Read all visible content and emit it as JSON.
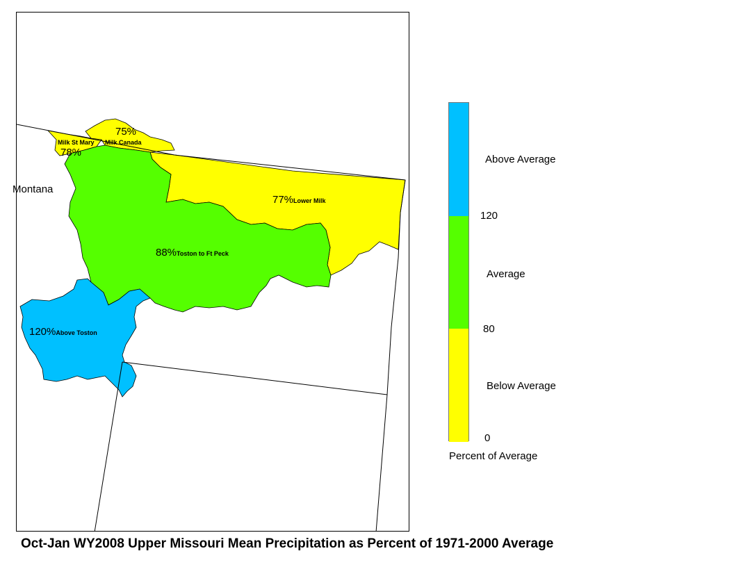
{
  "title": "Oct-Jan WY2008 Upper Missouri Mean Precipitation as Percent of 1971-2000 Average",
  "state_label": "Montana",
  "colors": {
    "above_average": "#00c0ff",
    "average": "#55ff00",
    "below_average": "#ffff00",
    "boundary": "#000000"
  },
  "basins": [
    {
      "name": "Milk St Mary",
      "percent": "78%",
      "category": "below_average"
    },
    {
      "name": "Milk Canada",
      "percent": "75%",
      "category": "below_average"
    },
    {
      "name": "Lower Milk",
      "percent": "77%",
      "category": "below_average"
    },
    {
      "name": "Toston to Ft Peck",
      "percent": "88%",
      "category": "average"
    },
    {
      "name": "Above Toston",
      "percent": "120%",
      "category": "above_average"
    }
  ],
  "legend": {
    "title": "Percent of Average",
    "categories": [
      {
        "label": "Above Average",
        "color": "#00c0ff",
        "range": [
          120,
          null
        ]
      },
      {
        "label": "Average",
        "color": "#55ff00",
        "range": [
          80,
          120
        ]
      },
      {
        "label": "Below Average",
        "color": "#ffff00",
        "range": [
          0,
          80
        ]
      }
    ],
    "ticks": [
      "120",
      "80",
      "0"
    ]
  }
}
